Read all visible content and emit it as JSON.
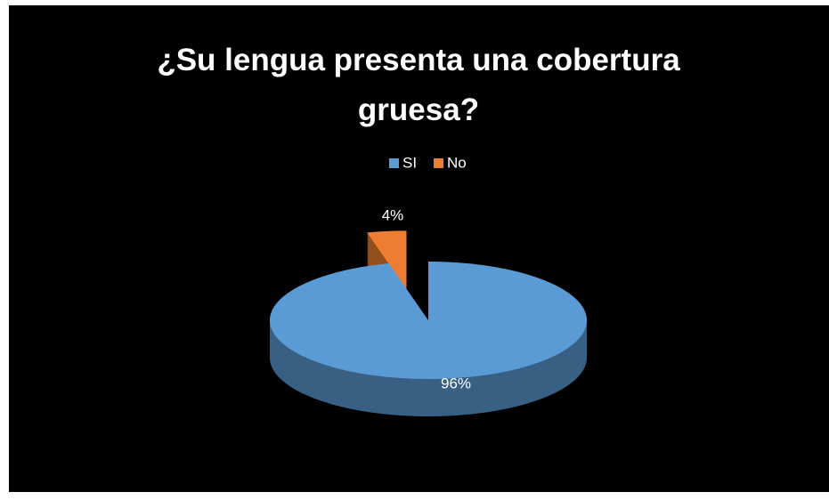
{
  "chart_data": {
    "type": "pie",
    "title": "¿Su lengua presenta una cobertura gruesa?",
    "categories": [
      "SI",
      "No"
    ],
    "values": [
      96,
      4
    ],
    "value_labels": [
      "96%",
      "4%"
    ],
    "colors": [
      "#5b9bd5",
      "#ed7d31"
    ],
    "exploded": [
      false,
      true
    ],
    "legend": "top"
  }
}
